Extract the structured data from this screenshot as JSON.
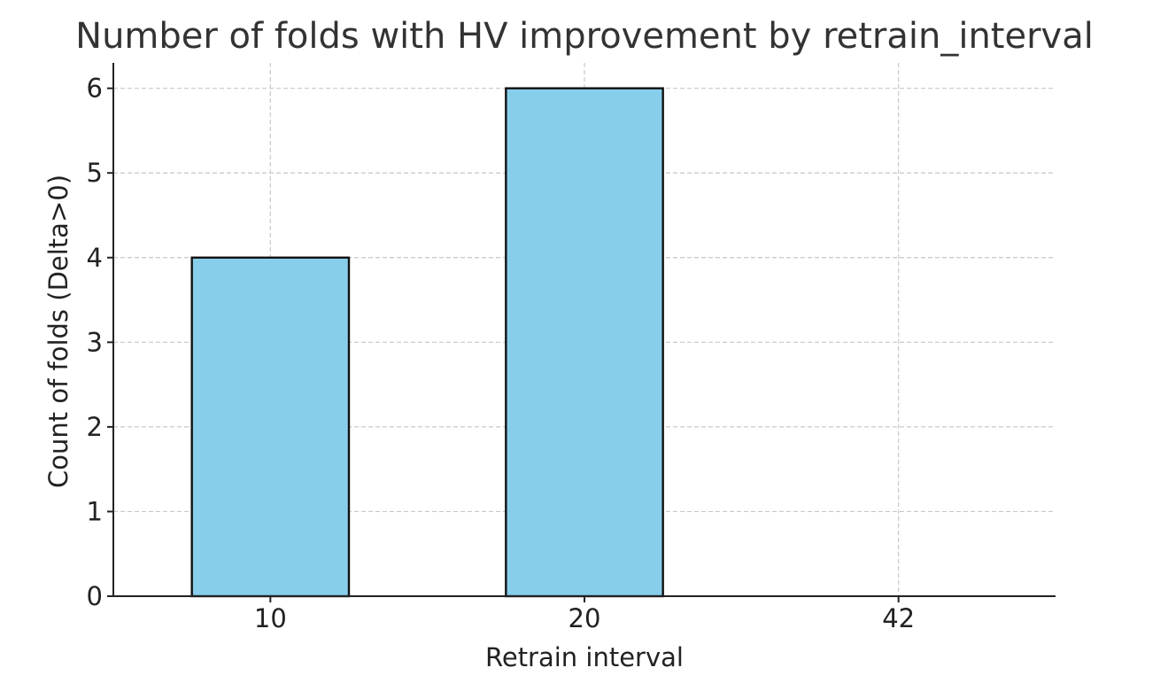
{
  "chart_data": {
    "type": "bar",
    "title": "Number of folds with HV improvement by retrain_interval",
    "xlabel": "Retrain interval",
    "ylabel": "Count of folds (Delta>0)",
    "categories": [
      "10",
      "20",
      "42"
    ],
    "values": [
      4,
      6,
      0
    ],
    "ylim": [
      0,
      6.3
    ],
    "yticks": [
      0,
      1,
      2,
      3,
      4,
      5,
      6
    ],
    "grid": true,
    "bar_color": "#87CEEB",
    "edge_color": "#111111"
  }
}
